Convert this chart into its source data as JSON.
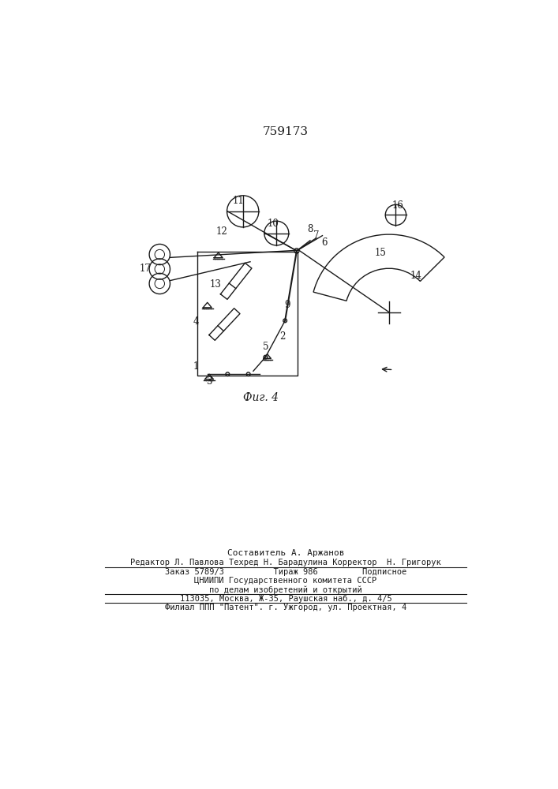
{
  "patent_number": "759173",
  "fig_label": "Фиг. 4",
  "bg_color": "#ffffff",
  "line_color": "#1a1a1a",
  "footer_lines": [
    "Составитель А. Аржанов",
    "Редактор Л. Павлова Техред Н. Барадулина Корректор  Н. Григорук",
    "Заказ 5789/3          Тираж 986         Подписное",
    "ЦНИИПИ Государственного комитета СССР",
    "по делам изобретений и открытий",
    "113035, Москва, Ж-35, Раушская наб., д. 4/5",
    "Филиал ППП \"Патент\". г. Ужгород, ул. Проектная, 4"
  ]
}
